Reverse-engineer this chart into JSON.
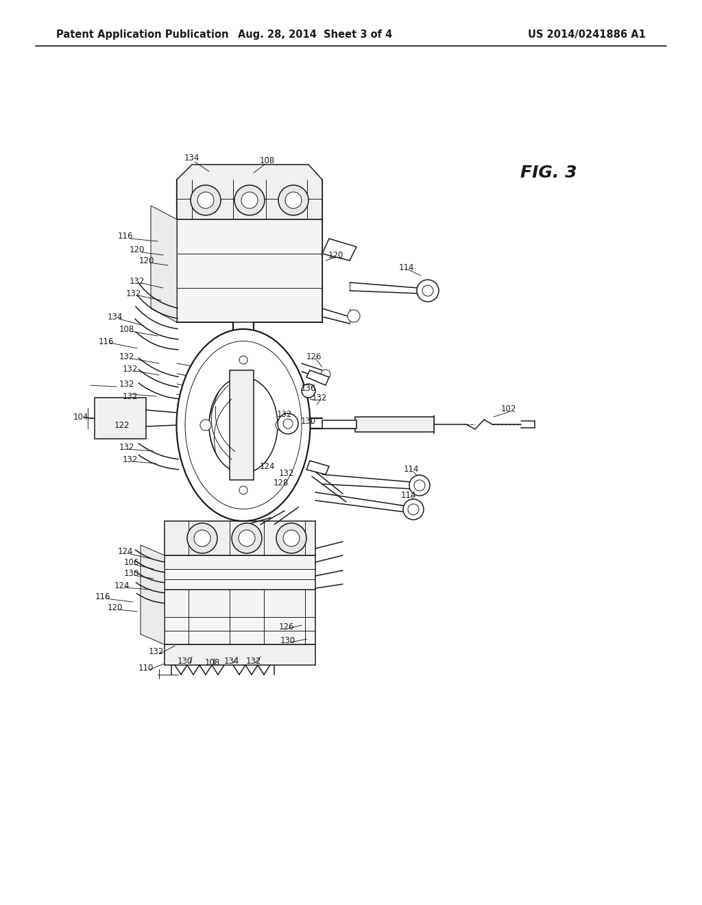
{
  "bg_color": "#ffffff",
  "header_left": "Patent Application Publication",
  "header_center": "Aug. 28, 2014  Sheet 3 of 4",
  "header_right": "US 2014/0241886 A1",
  "fig_label": "FIG. 3",
  "header_fontsize": 10.5,
  "fig_label_fontsize": 18,
  "text_color": "#1a1a1a",
  "line_color": "#1a1a1a",
  "lw_thin": 0.7,
  "lw_med": 1.1,
  "lw_thick": 1.6
}
